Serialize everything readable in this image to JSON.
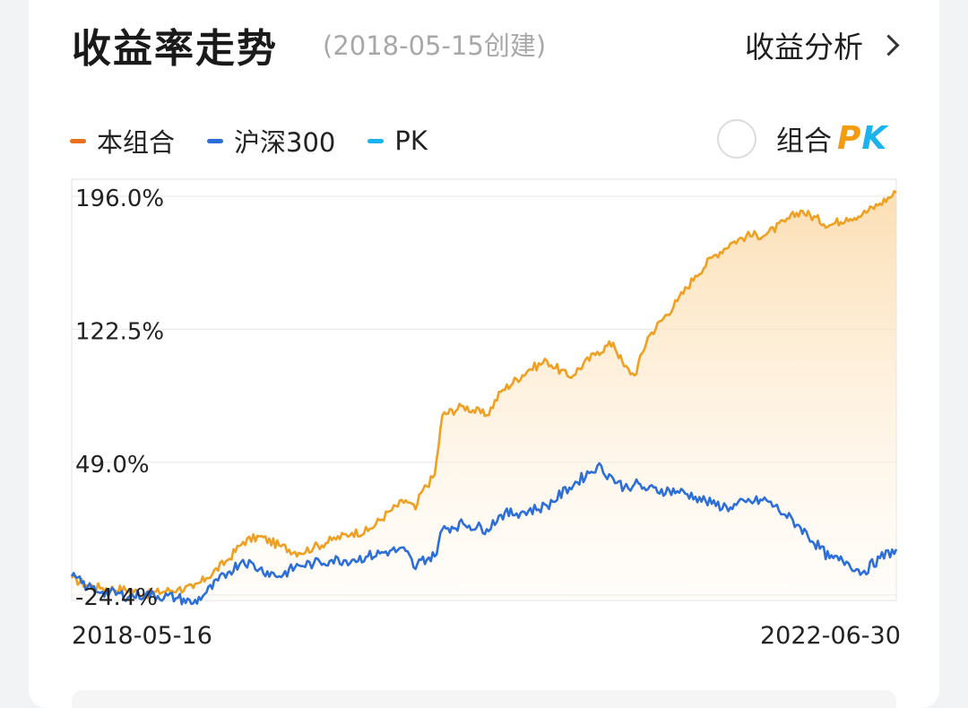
{
  "header": {
    "title": "收益率走势",
    "subtitle": "(2018-05-15创建)",
    "analysis_link": "收益分析"
  },
  "legend": [
    {
      "label": "本组合",
      "color": "#e8701f"
    },
    {
      "label": "沪深300",
      "color": "#2c6fd8"
    },
    {
      "label": "PK",
      "color": "#1ab3f0"
    }
  ],
  "pk_toggle": {
    "label": "组合",
    "brand_p": "P",
    "brand_k": "K"
  },
  "chart_data": {
    "type": "line",
    "x_start": "2018-05-16",
    "x_end": "2022-06-30",
    "y_ticks": [
      "196.0%",
      "122.5%",
      "49.0%",
      "-24.4%"
    ],
    "ylim": [
      -24.4,
      196.0
    ],
    "series": [
      {
        "name": "本组合",
        "color": "#f0a020",
        "x": [
          "2018-05-16",
          "2018-06-14",
          "2018-07-11",
          "2018-08-30",
          "2018-09-28",
          "2018-11-26",
          "2018-12-24",
          "2019-01-17",
          "2019-02-25",
          "2019-03-25",
          "2019-04-24",
          "2019-05-30",
          "2019-07-05",
          "2019-08-01",
          "2019-09-03",
          "2019-10-10",
          "2019-11-08",
          "2019-12-18",
          "2020-01-16",
          "2020-02-03",
          "2020-02-13",
          "2020-03-09",
          "2020-03-23",
          "2020-04-30",
          "2020-06-12",
          "2020-07-08",
          "2020-08-27",
          "2020-09-30",
          "2020-11-10",
          "2020-12-31",
          "2021-01-29",
          "2021-02-18",
          "2021-03-09",
          "2021-04-02",
          "2021-05-26",
          "2021-06-28",
          "2021-07-28",
          "2021-08-31",
          "2021-09-29",
          "2021-11-05",
          "2021-12-09",
          "2022-01-06",
          "2022-02-28",
          "2022-03-31",
          "2022-04-29",
          "2022-05-31",
          "2022-06-30"
        ],
        "values": [
          -15.0,
          -19.0,
          -20.5,
          -21.5,
          -24.0,
          -21.0,
          -20.5,
          -15.0,
          -5.0,
          5.0,
          8.0,
          3.0,
          -1.0,
          2.0,
          6.0,
          10.0,
          11.0,
          22.0,
          28.0,
          23.0,
          32.0,
          42.0,
          75.0,
          80.0,
          75.0,
          88.0,
          100.0,
          105.0,
          96.0,
          110.0,
          115.0,
          102.0,
          97.0,
          118.0,
          138.0,
          152.0,
          162.0,
          170.0,
          174.0,
          175.0,
          182.0,
          188.0,
          180.0,
          184.0,
          186.0,
          192.0,
          198.0
        ]
      },
      {
        "name": "沪深300",
        "color": "#2c6fd8",
        "x": [
          "2018-05-16",
          "2018-06-14",
          "2018-07-11",
          "2018-08-30",
          "2018-09-28",
          "2018-11-26",
          "2018-12-24",
          "2019-01-17",
          "2019-02-25",
          "2019-03-25",
          "2019-04-24",
          "2019-05-30",
          "2019-07-05",
          "2019-08-01",
          "2019-09-03",
          "2019-10-10",
          "2019-11-08",
          "2019-12-18",
          "2020-01-16",
          "2020-02-03",
          "2020-02-13",
          "2020-03-09",
          "2020-03-23",
          "2020-04-30",
          "2020-06-12",
          "2020-07-08",
          "2020-08-27",
          "2020-09-30",
          "2020-11-10",
          "2020-12-31",
          "2021-01-29",
          "2021-02-18",
          "2021-03-09",
          "2021-04-02",
          "2021-05-26",
          "2021-06-28",
          "2021-07-28",
          "2021-08-31",
          "2021-09-29",
          "2021-11-05",
          "2021-12-09",
          "2022-01-06",
          "2022-02-28",
          "2022-03-31",
          "2022-04-29",
          "2022-05-31",
          "2022-06-30"
        ],
        "values": [
          -14.0,
          -20.0,
          -22.5,
          -25.0,
          -24.0,
          -26.0,
          -29.0,
          -23.0,
          -12.0,
          -5.0,
          -10.0,
          -14.0,
          -8.0,
          -7.0,
          -5.0,
          -5.0,
          -3.0,
          0.0,
          0.0,
          -10.0,
          -5.0,
          -3.0,
          12.0,
          15.0,
          12.0,
          20.0,
          22.0,
          25.0,
          35.0,
          47.0,
          40.0,
          35.0,
          37.0,
          34.0,
          33.0,
          30.0,
          26.0,
          24.0,
          27.0,
          28.0,
          20.0,
          13.0,
          -4.0,
          -6.0,
          -12.0,
          -4.0,
          1.0
        ]
      }
    ],
    "grid": true
  }
}
